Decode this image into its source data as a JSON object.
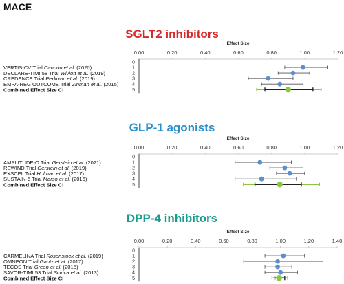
{
  "page_title": "MACE",
  "colors": {
    "sglt2_title": "#d42a2a",
    "glp1_title": "#2a8fc9",
    "dpp4_title": "#1a9c8c",
    "study_point": "#5b8fd0",
    "combined_point": "#8cc63f",
    "combined_interval_inner": "#222222",
    "whisker": "#555555"
  },
  "chart_data": [
    {
      "type": "scatter",
      "subtype": "forest-plot",
      "title": "SGLT2 inhibitors",
      "xlabel": "Effect Size",
      "xlim": [
        0,
        1.2
      ],
      "x_ticks": [
        "0.00",
        "0.20",
        "0.40",
        "0.60",
        "0.80",
        "1.00",
        "1.20"
      ],
      "y_ticks": [
        "0",
        "1",
        "2",
        "3",
        "4",
        "5"
      ],
      "grid": false,
      "studies": [
        {
          "trial": "VERTIS-CV Trial",
          "author": "Cannon et al.",
          "year": "(2020)",
          "y": 1,
          "estimate": 0.99,
          "ci": [
            0.88,
            1.14
          ]
        },
        {
          "trial": "DECLARE-TIMI 58 Trial",
          "author": "Wiviott et al.",
          "year": "(2019)",
          "y": 2,
          "estimate": 0.93,
          "ci": [
            0.84,
            1.03
          ]
        },
        {
          "trial": "CREDENCE Trial",
          "author": "Perkovic et al.",
          "year": "(2019)",
          "y": 3,
          "estimate": 0.78,
          "ci": [
            0.66,
            0.93
          ]
        },
        {
          "trial": "EMPA-REG OUTCOME Trial",
          "author": "Zinman et al.",
          "year": "(2015)",
          "y": 4,
          "estimate": 0.85,
          "ci": [
            0.74,
            0.99
          ]
        }
      ],
      "combined": {
        "label": "Combined Effect Size CI",
        "y": 5,
        "estimate": 0.9,
        "ci": [
          0.76,
          1.05
        ],
        "outer": [
          0.71,
          1.1
        ]
      }
    },
    {
      "type": "scatter",
      "subtype": "forest-plot",
      "title": "GLP-1 agonists",
      "xlabel": "Effect Size",
      "xlim": [
        0,
        1.2
      ],
      "x_ticks": [
        "0.00",
        "0.20",
        "0.40",
        "0.60",
        "0.80",
        "1.00",
        "1.20"
      ],
      "y_ticks": [
        "0",
        "1",
        "2",
        "3",
        "4",
        "5"
      ],
      "grid": false,
      "studies": [
        {
          "trial": "AMPLITUDE-O Trial",
          "author": "Gerstein et al.",
          "year": "(2021)",
          "y": 1,
          "estimate": 0.73,
          "ci": [
            0.58,
            0.92
          ]
        },
        {
          "trial": "REWIND Trial",
          "author": "Gerstein et al.",
          "year": "(2019)",
          "y": 2,
          "estimate": 0.88,
          "ci": [
            0.79,
            0.99
          ]
        },
        {
          "trial": "EXSCEL Trial",
          "author": "Holman et al.",
          "year": "(2017)",
          "y": 3,
          "estimate": 0.91,
          "ci": [
            0.83,
            1.0
          ]
        },
        {
          "trial": "SUSTAIN-6 Trial",
          "author": "Marso et al.",
          "year": "(2016)",
          "y": 4,
          "estimate": 0.74,
          "ci": [
            0.58,
            0.95
          ]
        }
      ],
      "combined": {
        "label": "Combined Effect Size CI",
        "y": 5,
        "estimate": 0.85,
        "ci": [
          0.7,
          0.98
        ],
        "outer": [
          0.63,
          1.09
        ]
      }
    },
    {
      "type": "scatter",
      "subtype": "forest-plot",
      "title": "DPP-4 inhibitors",
      "xlabel": "Effect Size",
      "xlim": [
        0,
        1.4
      ],
      "x_ticks": [
        "0.00",
        "0.20",
        "0.40",
        "0.60",
        "0.80",
        "1.00",
        "1.20",
        "1.40"
      ],
      "y_ticks": [
        "0",
        "1",
        "2",
        "3",
        "4",
        "5"
      ],
      "grid": false,
      "studies": [
        {
          "trial": "CARMELINA Trial",
          "author": "Rosenstock et al.",
          "year": "(2019)",
          "y": 1,
          "estimate": 1.02,
          "ci": [
            0.89,
            1.17
          ]
        },
        {
          "trial": "OMNEON Trial",
          "author": "Gantz et al.",
          "year": "(2017)",
          "y": 2,
          "estimate": 0.98,
          "ci": [
            0.74,
            1.3
          ]
        },
        {
          "trial": "TECOS Trial",
          "author": "Green et al.",
          "year": "(2015)",
          "y": 3,
          "estimate": 0.98,
          "ci": [
            0.89,
            1.08
          ]
        },
        {
          "trial": "SAVOR-TIMI 53 Trial",
          "author": "Scirica et al.",
          "year": "(2013)",
          "y": 4,
          "estimate": 1.0,
          "ci": [
            0.89,
            1.12
          ]
        }
      ],
      "combined": {
        "label": "Combined Effect Size CI",
        "y": 5,
        "estimate": 0.99,
        "ci": [
          0.96,
          1.03
        ],
        "outer": [
          0.94,
          1.05
        ]
      }
    }
  ]
}
